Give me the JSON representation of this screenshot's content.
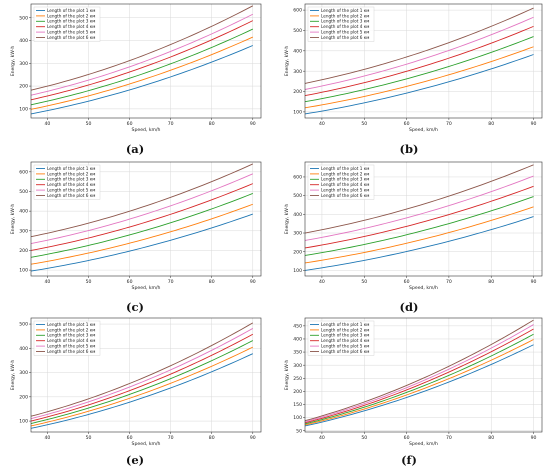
{
  "colors": {
    "series": [
      "#1f77b4",
      "#ff7f0e",
      "#2ca02c",
      "#d62728",
      "#e377c2",
      "#8c564b"
    ],
    "grid": "#d9d9d9",
    "frame": "#333333"
  },
  "chart_data": [
    {
      "type": "line",
      "panel_label": "(a)",
      "xlabel": "Speed, km/h",
      "ylabel": "Energy, kW·h",
      "xlim": [
        36,
        92
      ],
      "ylim": [
        60,
        560
      ],
      "xticks": [
        40,
        50,
        60,
        70,
        80,
        90
      ],
      "yticks": [
        100,
        200,
        300,
        400,
        500
      ],
      "grid": true,
      "legend_position": "top-left",
      "x": [
        36,
        90
      ],
      "series": [
        {
          "name": "Length of the plot 1 км",
          "start": 78,
          "end": 378
        },
        {
          "name": "Length of the plot 2 км",
          "start": 98,
          "end": 415
        },
        {
          "name": "Length of the plot 3 км",
          "start": 118,
          "end": 450
        },
        {
          "name": "Length of the plot 4 км",
          "start": 140,
          "end": 487
        },
        {
          "name": "Length of the plot 5 км",
          "start": 160,
          "end": 515
        },
        {
          "name": "Length of the plot 6 км",
          "start": 182,
          "end": 552
        }
      ]
    },
    {
      "type": "line",
      "panel_label": "(b)",
      "xlabel": "Speed, km/h",
      "ylabel": "Energy, kW·h",
      "xlim": [
        36,
        92
      ],
      "ylim": [
        70,
        630
      ],
      "xticks": [
        40,
        50,
        60,
        70,
        80,
        90
      ],
      "yticks": [
        100,
        200,
        300,
        400,
        500,
        600
      ],
      "grid": true,
      "legend_position": "top-left",
      "x": [
        36,
        90
      ],
      "series": [
        {
          "name": "Length of the plot 1 км",
          "start": 90,
          "end": 382
        },
        {
          "name": "Length of the plot 2 км",
          "start": 120,
          "end": 420
        },
        {
          "name": "Length of the plot 3 км",
          "start": 150,
          "end": 470
        },
        {
          "name": "Length of the plot 4 км",
          "start": 180,
          "end": 520
        },
        {
          "name": "Length of the plot 5 км",
          "start": 210,
          "end": 565
        },
        {
          "name": "Length of the plot 6 км",
          "start": 240,
          "end": 610
        }
      ]
    },
    {
      "type": "line",
      "panel_label": "(c)",
      "xlabel": "Speed, km/h",
      "ylabel": "Energy, kW·h",
      "xlim": [
        36,
        92
      ],
      "ylim": [
        70,
        650
      ],
      "xticks": [
        40,
        50,
        60,
        70,
        80,
        90
      ],
      "yticks": [
        100,
        200,
        300,
        400,
        500,
        600
      ],
      "grid": true,
      "legend_position": "top-left",
      "x": [
        36,
        90
      ],
      "series": [
        {
          "name": "Length of the plot 1 км",
          "start": 95,
          "end": 385
        },
        {
          "name": "Length of the plot 2 км",
          "start": 130,
          "end": 435
        },
        {
          "name": "Length of the plot 3 км",
          "start": 165,
          "end": 490
        },
        {
          "name": "Length of the plot 4 км",
          "start": 200,
          "end": 540
        },
        {
          "name": "Length of the plot 5 км",
          "start": 235,
          "end": 590
        },
        {
          "name": "Length of the plot 6 км",
          "start": 270,
          "end": 640
        }
      ]
    },
    {
      "type": "line",
      "panel_label": "(d)",
      "xlabel": "Speed, km/h",
      "ylabel": "Energy, kW·h",
      "xlim": [
        36,
        92
      ],
      "ylim": [
        70,
        680
      ],
      "xticks": [
        40,
        50,
        60,
        70,
        80,
        90
      ],
      "yticks": [
        100,
        200,
        300,
        400,
        500,
        600
      ],
      "grid": true,
      "legend_position": "top-left",
      "x": [
        36,
        90
      ],
      "series": [
        {
          "name": "Length of the plot 1 км",
          "start": 100,
          "end": 388
        },
        {
          "name": "Length of the plot 2 км",
          "start": 140,
          "end": 440
        },
        {
          "name": "Length of the plot 3 км",
          "start": 180,
          "end": 495
        },
        {
          "name": "Length of the plot 4 км",
          "start": 220,
          "end": 550
        },
        {
          "name": "Length of the plot 5 км",
          "start": 260,
          "end": 605
        },
        {
          "name": "Length of the plot 6 км",
          "start": 300,
          "end": 665
        }
      ]
    },
    {
      "type": "line",
      "panel_label": "(e)",
      "xlabel": "Speed, km/h",
      "ylabel": "Energy, kW·h",
      "xlim": [
        36,
        92
      ],
      "ylim": [
        55,
        525
      ],
      "xticks": [
        40,
        50,
        60,
        70,
        80,
        90
      ],
      "yticks": [
        100,
        200,
        300,
        400,
        500
      ],
      "grid": true,
      "legend_position": "top-left",
      "x": [
        36,
        90
      ],
      "series": [
        {
          "name": "Length of the plot 1 км",
          "start": 70,
          "end": 378
        },
        {
          "name": "Length of the plot 2 км",
          "start": 80,
          "end": 405
        },
        {
          "name": "Length of the plot 3 км",
          "start": 90,
          "end": 432
        },
        {
          "name": "Length of the plot 4 км",
          "start": 100,
          "end": 458
        },
        {
          "name": "Length of the plot 5 км",
          "start": 110,
          "end": 482
        },
        {
          "name": "Length of the plot 6 км",
          "start": 120,
          "end": 505
        }
      ]
    },
    {
      "type": "line",
      "panel_label": "(f)",
      "xlabel": "Speed, km/h",
      "ylabel": "Energy, kW·h",
      "xlim": [
        36,
        92
      ],
      "ylim": [
        45,
        480
      ],
      "xticks": [
        40,
        50,
        60,
        70,
        80,
        90
      ],
      "yticks": [
        50,
        100,
        150,
        200,
        250,
        300,
        350,
        400,
        450
      ],
      "grid": true,
      "legend_position": "top-left",
      "x": [
        36,
        90
      ],
      "series": [
        {
          "name": "Length of the plot 1 км",
          "start": 68,
          "end": 378
        },
        {
          "name": "Length of the plot 2 км",
          "start": 72,
          "end": 398
        },
        {
          "name": "Length of the plot 3 км",
          "start": 76,
          "end": 418
        },
        {
          "name": "Length of the plot 4 км",
          "start": 80,
          "end": 438
        },
        {
          "name": "Length of the plot 5 км",
          "start": 84,
          "end": 455
        },
        {
          "name": "Length of the plot 6 км",
          "start": 88,
          "end": 472
        }
      ]
    }
  ]
}
